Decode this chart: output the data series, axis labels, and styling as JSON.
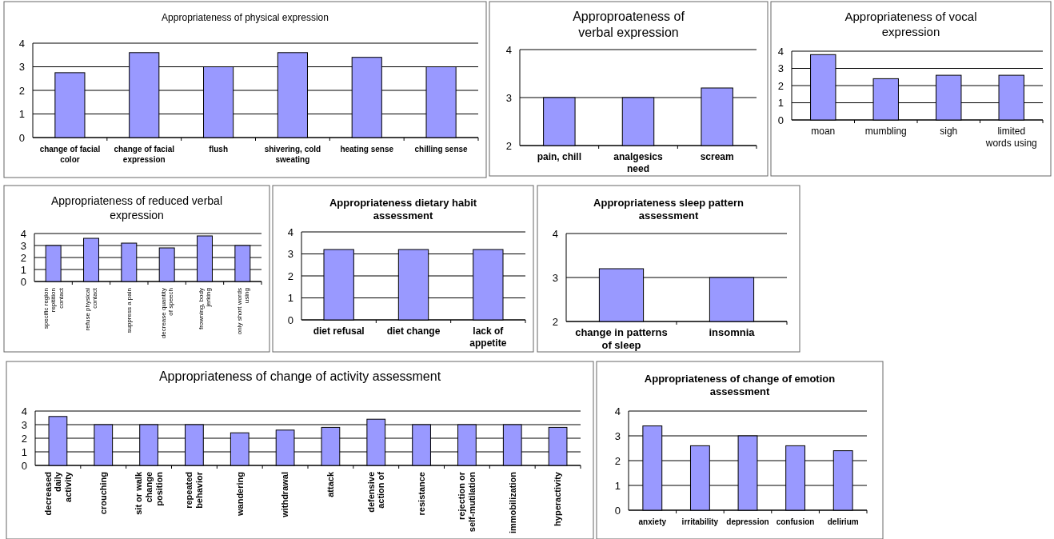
{
  "chart_data": [
    {
      "type": "bar",
      "title": "Appropriateness of physical expression",
      "categories": [
        "change of facial color",
        "change of facial expression",
        "flush",
        "shivering, cold sweating",
        "heating sense",
        "chilling sense"
      ],
      "values": [
        2.75,
        3.6,
        3.0,
        3.6,
        3.4,
        3.0
      ],
      "color": "#9999ff",
      "ylim": [
        0,
        4
      ],
      "yticks": [
        0,
        1,
        2,
        3,
        4
      ],
      "grid": "y"
    },
    {
      "type": "bar",
      "title": "Approproateness of verbal expression",
      "categories": [
        "pain, chill",
        "analgesics need",
        "scream"
      ],
      "values": [
        3.0,
        3.0,
        3.2
      ],
      "color": "#9999ff",
      "ylim": [
        2,
        4
      ],
      "yticks": [
        2,
        3,
        4
      ],
      "grid": "y"
    },
    {
      "type": "bar",
      "title": "Appropriateness of vocal expression",
      "categories": [
        "moan",
        "mumbling",
        "sigh",
        "limited words using"
      ],
      "values": [
        3.8,
        2.4,
        2.6,
        2.6
      ],
      "color": "#9999ff",
      "ylim": [
        0,
        4
      ],
      "yticks": [
        0,
        1,
        2,
        3,
        4
      ],
      "grid": "y"
    },
    {
      "type": "bar",
      "title": "Appropriateness of reduced verbal expression",
      "categories": [
        "specific region repitition contact",
        "refuse physical contact",
        "suppress a pain",
        "decrease quantity of speech",
        "frowning, body jerking",
        "only short words using"
      ],
      "values": [
        3.0,
        3.6,
        3.2,
        2.8,
        3.8,
        3.0
      ],
      "color": "#9999ff",
      "ylim": [
        0,
        4
      ],
      "yticks": [
        0,
        1,
        2,
        3,
        4
      ],
      "grid": "y"
    },
    {
      "type": "bar",
      "title": "Appropriateness dietary habit assessment",
      "categories": [
        "diet refusal",
        "diet change",
        "lack of appetite"
      ],
      "values": [
        3.2,
        3.2,
        3.2
      ],
      "color": "#9999ff",
      "ylim": [
        0,
        4
      ],
      "yticks": [
        0,
        1,
        2,
        3,
        4
      ],
      "grid": "y"
    },
    {
      "type": "bar",
      "title": "Appropriateness sleep pattern assessment",
      "categories": [
        "change in patterns of sleep",
        "insomnia"
      ],
      "values": [
        3.2,
        3.0
      ],
      "color": "#9999ff",
      "ylim": [
        2,
        4
      ],
      "yticks": [
        2,
        3,
        4
      ],
      "grid": "y"
    },
    {
      "type": "bar",
      "title": "Appropriateness of change of activity assessment",
      "categories": [
        "decreased daily activity",
        "crouching",
        "sit or walk change position",
        "repeated behavior",
        "wandering",
        "withdrawal",
        "attack",
        "defensive action of",
        "resistance",
        "rejection or self-mutilation",
        "immobilization",
        "hyperactivity"
      ],
      "values": [
        3.6,
        3.0,
        3.0,
        3.0,
        2.4,
        2.6,
        2.8,
        3.4,
        3.0,
        3.0,
        3.0,
        2.8
      ],
      "color": "#9999ff",
      "ylim": [
        0,
        4
      ],
      "yticks": [
        0,
        1,
        2,
        3,
        4
      ],
      "grid": "y"
    },
    {
      "type": "bar",
      "title": "Appropriateness of change of emotion assessment",
      "categories": [
        "anxiety",
        "irritability",
        "depression",
        "confusion",
        "delirium"
      ],
      "values": [
        3.4,
        2.6,
        3.0,
        2.6,
        2.4
      ],
      "color": "#9999ff",
      "ylim": [
        0,
        4
      ],
      "yticks": [
        0,
        1,
        2,
        3,
        4
      ],
      "grid": "y"
    }
  ]
}
